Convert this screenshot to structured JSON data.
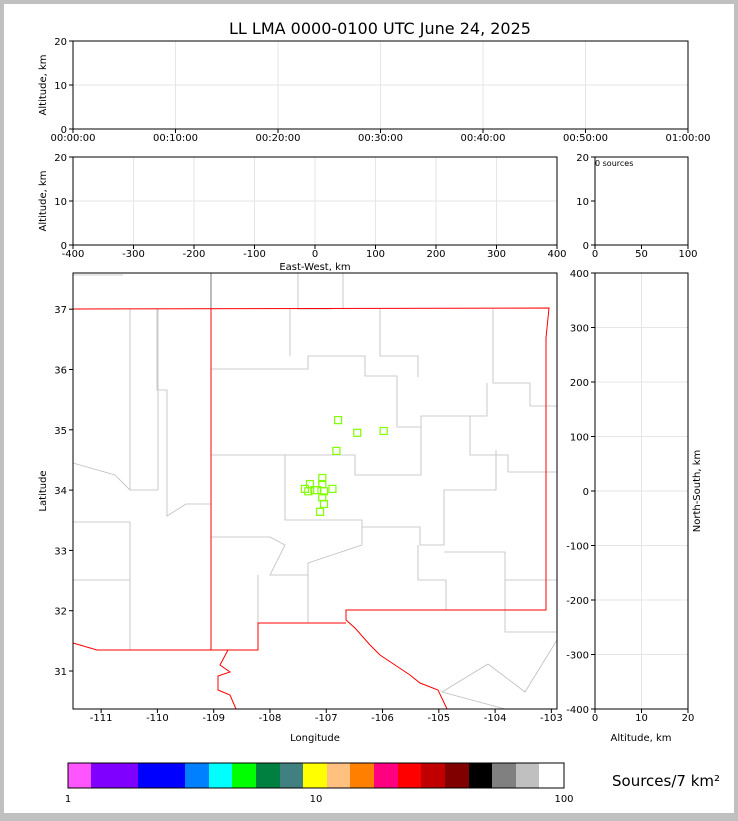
{
  "title": "LL LMA 0000-0100 UTC June 24, 2025",
  "chart_data": [
    {
      "panel": "altitude-time",
      "type": "scatter",
      "ylabel": "Altitude, km",
      "ylim": [
        0,
        20
      ],
      "yticks": [
        "0",
        "10",
        "20"
      ],
      "xticks": [
        "00:00:00",
        "00:10:00",
        "00:20:00",
        "00:30:00",
        "00:40:00",
        "00:50:00",
        "01:00:00"
      ],
      "points": [],
      "grid": true
    },
    {
      "panel": "altitude-eastwest",
      "type": "scatter",
      "ylabel": "Altitude, km",
      "xlabel": "East-West, km",
      "xlim": [
        -400,
        400
      ],
      "ylim": [
        0,
        20
      ],
      "xticks": [
        "-400",
        "-300",
        "-200",
        "-100",
        "0",
        "100",
        "200",
        "300",
        "400"
      ],
      "yticks": [
        "0",
        "10",
        "20"
      ],
      "points": [],
      "grid": true
    },
    {
      "panel": "histogram",
      "type": "bar",
      "annotation": "0 sources",
      "xlim": [
        0,
        100
      ],
      "ylim": [
        0,
        20
      ],
      "xticks": [
        "0",
        "50",
        "100"
      ],
      "yticks": [
        "0",
        "10",
        "20"
      ]
    },
    {
      "panel": "plan-view",
      "type": "scatter",
      "xlabel": "Longitude",
      "ylabel": "Latitude",
      "xlim": [
        -111.5,
        -102.9
      ],
      "ylim": [
        30.37,
        37.6
      ],
      "xticks": [
        "-111",
        "-110",
        "-109",
        "-108",
        "-107",
        "-106",
        "-105",
        "-104",
        "-103"
      ],
      "yticks": [
        "31",
        "32",
        "33",
        "34",
        "35",
        "36",
        "37"
      ],
      "marker_color": "#80ff00",
      "points": [
        [
          -106.79,
          35.16
        ],
        [
          -106.45,
          34.95
        ],
        [
          -105.98,
          34.98
        ],
        [
          -106.82,
          34.65
        ],
        [
          -107.38,
          34.02
        ],
        [
          -107.29,
          34.1
        ],
        [
          -107.21,
          34.0
        ],
        [
          -107.16,
          34.0
        ],
        [
          -107.07,
          34.2
        ],
        [
          -107.07,
          34.1
        ],
        [
          -107.04,
          33.98
        ],
        [
          -106.89,
          34.02
        ],
        [
          -107.07,
          33.88
        ],
        [
          -107.04,
          33.77
        ],
        [
          -107.11,
          33.64
        ],
        [
          -107.32,
          33.98
        ]
      ]
    },
    {
      "panel": "altitude-northsouth",
      "type": "scatter",
      "ylabel": "North-South, km",
      "xlabel": "Altitude, km",
      "xlim": [
        0,
        20
      ],
      "ylim": [
        -400,
        400
      ],
      "xticks": [
        "0",
        "10",
        "20"
      ],
      "yticks": [
        "-400",
        "-300",
        "-200",
        "-100",
        "0",
        "100",
        "200",
        "300",
        "400"
      ],
      "points": [],
      "grid": true
    },
    {
      "panel": "colorbar",
      "label": "Sources/7 km²",
      "scale": "log",
      "range": [
        1,
        100
      ],
      "ticks": [
        "1",
        "10",
        "100"
      ],
      "colors": [
        "#ff55ff",
        "#8000ff",
        "#0000ff",
        "#0080ff",
        "#00ffff",
        "#00ff00",
        "#008040",
        "#408080",
        "#ffff00",
        "#ffc080",
        "#ff8000",
        "#ff0080",
        "#ff0000",
        "#c00000",
        "#800000",
        "#000000",
        "#808080",
        "#c0c0c0",
        "#ffffff"
      ]
    }
  ]
}
